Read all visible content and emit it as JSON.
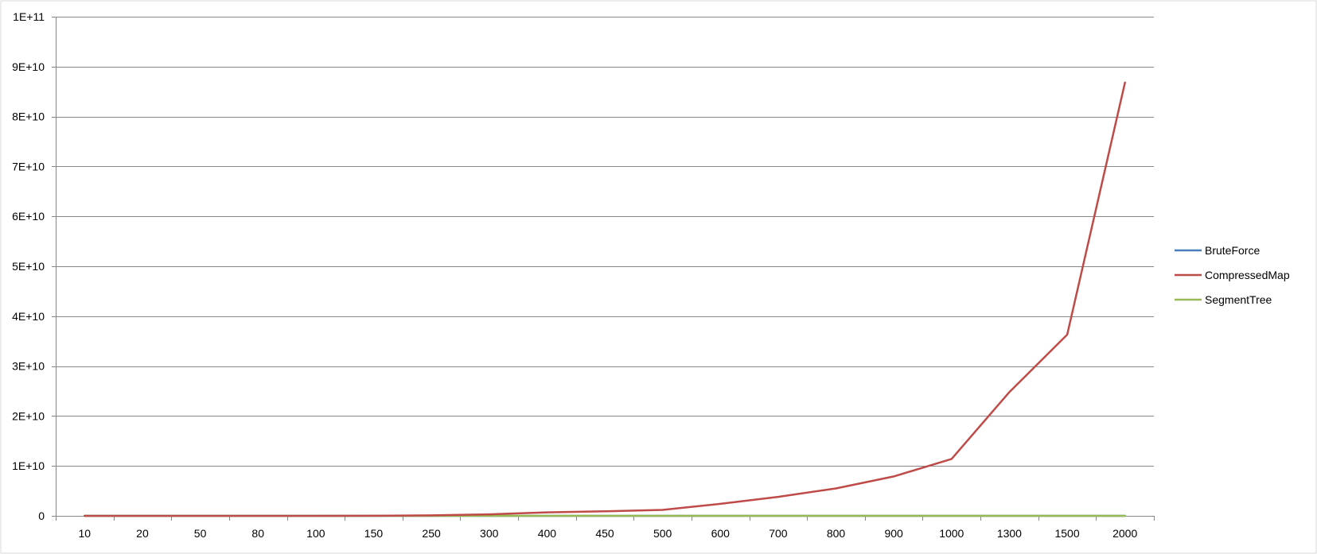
{
  "chart_data": {
    "type": "line",
    "title": "",
    "xlabel": "",
    "ylabel": "",
    "categories": [
      "10",
      "20",
      "50",
      "80",
      "100",
      "150",
      "250",
      "300",
      "400",
      "450",
      "500",
      "600",
      "700",
      "800",
      "900",
      "1000",
      "1300",
      "1500",
      "2000"
    ],
    "ylim": [
      0,
      100000000000
    ],
    "y_ticks": [
      0,
      10000000000,
      20000000000,
      30000000000,
      40000000000,
      50000000000,
      60000000000,
      70000000000,
      80000000000,
      90000000000,
      100000000000
    ],
    "y_tick_labels": [
      "0",
      "1E+10",
      "2E+10",
      "3E+10",
      "4E+10",
      "5E+10",
      "6E+10",
      "7E+10",
      "8E+10",
      "9E+10",
      "1E+11"
    ],
    "grid": "horizontal",
    "legend_position": "right",
    "series": [
      {
        "name": "BruteForce",
        "color": "#4a7ebb",
        "values": [
          0,
          0,
          0,
          0,
          0,
          0,
          0,
          0,
          0,
          0,
          0,
          0,
          0,
          0,
          0,
          0,
          0,
          0,
          0
        ]
      },
      {
        "name": "CompressedMap",
        "color": "#be4b48",
        "values": [
          0,
          0,
          0,
          0,
          1000000,
          10000000,
          100000000,
          300000000,
          700000000,
          900000000,
          1200000000,
          2400000000,
          3800000000,
          5500000000,
          7900000000,
          11400000000,
          24800000000,
          36300000000,
          86800000000
        ]
      },
      {
        "name": "SegmentTree",
        "color": "#98b954",
        "values": [
          0,
          0,
          0,
          0,
          0,
          0,
          0,
          0,
          0,
          0,
          0,
          0,
          0,
          0,
          0,
          0,
          0,
          0,
          0
        ]
      }
    ]
  }
}
